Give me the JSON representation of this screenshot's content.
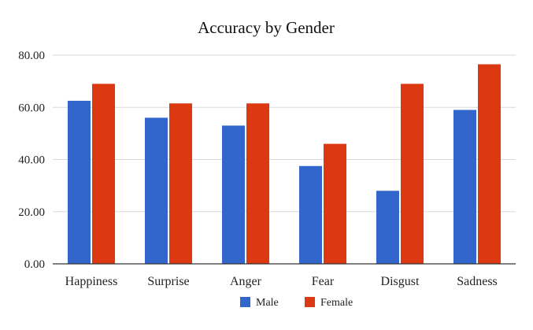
{
  "chart_data": {
    "type": "bar",
    "title": "Accuracy by Gender",
    "xlabel": "",
    "ylabel": "",
    "categories": [
      "Happiness",
      "Surprise",
      "Anger",
      "Fear",
      "Disgust",
      "Sadness"
    ],
    "series": [
      {
        "name": "Male",
        "color": "#3366cc",
        "values": [
          62.5,
          56.0,
          53.0,
          37.5,
          28.0,
          59.0
        ]
      },
      {
        "name": "Female",
        "color": "#dc3912",
        "values": [
          69.0,
          61.5,
          61.5,
          46.0,
          69.0,
          76.5
        ]
      }
    ],
    "ylim": [
      0,
      80
    ],
    "yticks": [
      "0.00",
      "20.00",
      "40.00",
      "60.00",
      "80.00"
    ],
    "grid": true,
    "legend_position": "bottom"
  }
}
